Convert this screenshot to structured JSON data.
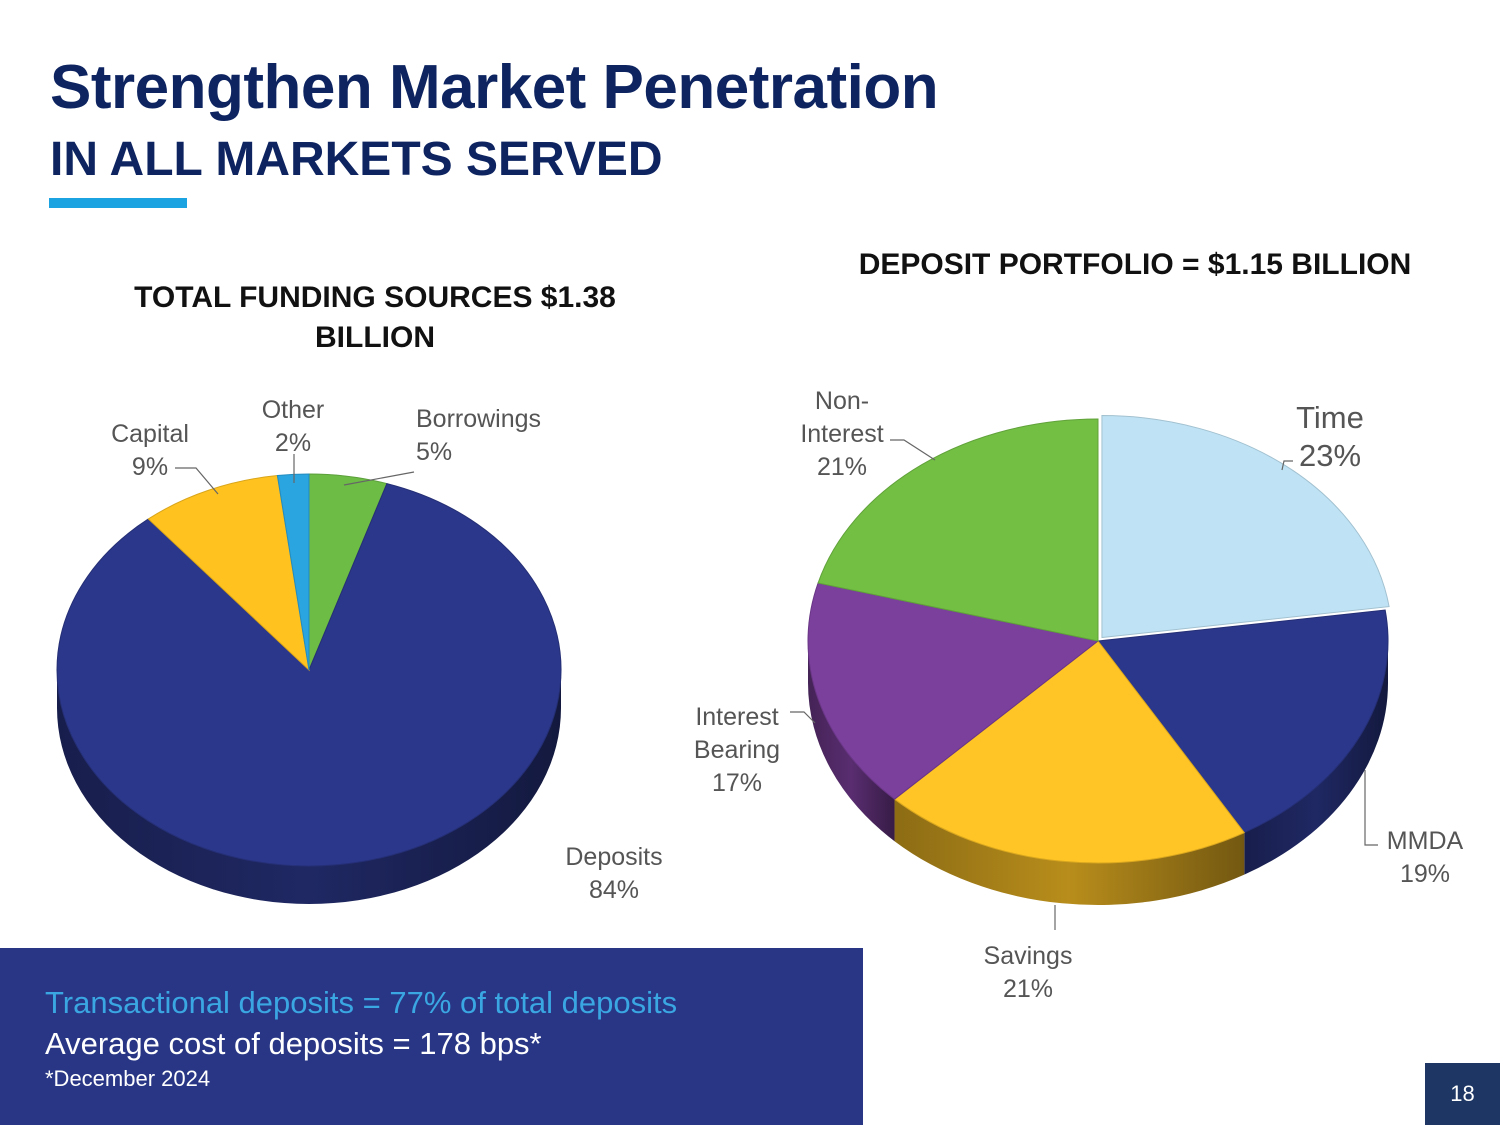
{
  "header": {
    "title": "Strengthen Market Penetration",
    "subtitle": "IN ALL MARKETS SERVED"
  },
  "colors": {
    "navy": "#283685",
    "accent_blue": "#1aa3e0",
    "title_navy": "#0d2461"
  },
  "chart_data": [
    {
      "type": "pie",
      "title": "TOTAL FUNDING SOURCES $1.38 BILLION",
      "style": "3d",
      "categories": [
        "Borrowings",
        "Deposits",
        "Capital",
        "Other"
      ],
      "values": [
        5,
        84,
        9,
        2
      ],
      "colors": [
        "#6cbc45",
        "#2b378a",
        "#ffc21f",
        "#2aa5e0"
      ],
      "labels": [
        {
          "lines": [
            "Borrowings",
            "5%"
          ]
        },
        {
          "lines": [
            "Deposits",
            "84%"
          ]
        },
        {
          "lines": [
            "Capital",
            "9%"
          ]
        },
        {
          "lines": [
            "Other",
            "2%"
          ]
        }
      ]
    },
    {
      "type": "pie",
      "title": "DEPOSIT PORTFOLIO = $1.15 BILLION",
      "style": "3d",
      "categories": [
        "Time",
        "MMDA",
        "Savings",
        "Interest Bearing",
        "Non-Interest"
      ],
      "values": [
        23,
        19,
        21,
        17,
        21
      ],
      "colors": [
        "#bfe3f5",
        "#2b378a",
        "#ffc425",
        "#7b3f9c",
        "#72bf44"
      ],
      "labels": [
        {
          "lines": [
            "Time",
            "23%"
          ]
        },
        {
          "lines": [
            "MMDA",
            "19%"
          ]
        },
        {
          "lines": [
            "Savings",
            "21%"
          ]
        },
        {
          "lines": [
            "Interest",
            "Bearing",
            "17%"
          ]
        },
        {
          "lines": [
            "Non-",
            "Interest",
            "21%"
          ]
        }
      ]
    }
  ],
  "info_box": {
    "line1": "Transactional deposits = 77% of total deposits",
    "line2": "Average cost of deposits = 178 bps*",
    "note": "*December 2024"
  },
  "page_number": "18"
}
